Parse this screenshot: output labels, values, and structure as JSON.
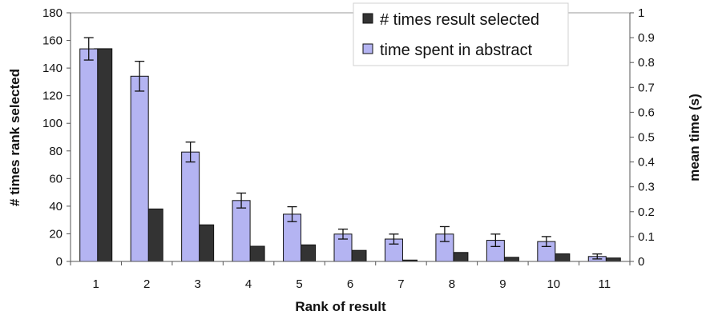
{
  "chart_data": {
    "type": "bar",
    "categories": [
      "1",
      "2",
      "3",
      "4",
      "5",
      "6",
      "7",
      "8",
      "9",
      "10",
      "11"
    ],
    "xlabel": "Rank of result",
    "ylabel": "# times rank selected",
    "y2label": "mean time (s)",
    "ylim": [
      0,
      180
    ],
    "y2lim": [
      0,
      1
    ],
    "yticks": [
      "0",
      "20",
      "40",
      "60",
      "80",
      "100",
      "120",
      "140",
      "160",
      "180"
    ],
    "y2ticks": [
      "0",
      "0.1",
      "0.2",
      "0.3",
      "0.4",
      "0.5",
      "0.6",
      "0.7",
      "0.8",
      "0.9",
      "1"
    ],
    "legend_position": "top-right",
    "grid": false,
    "series": [
      {
        "name": "# times result selected",
        "axis": "left",
        "color": "#333333",
        "values": [
          154,
          38,
          26.5,
          11,
          12,
          8,
          1,
          6.5,
          3,
          5.5,
          2.5
        ]
      },
      {
        "name": "time spent in abstract",
        "axis": "right",
        "color": "#b4b4f2",
        "values": [
          0.855,
          0.745,
          0.44,
          0.245,
          0.19,
          0.11,
          0.09,
          0.11,
          0.085,
          0.08,
          0.02
        ],
        "error": [
          0.045,
          0.06,
          0.04,
          0.03,
          0.03,
          0.02,
          0.02,
          0.03,
          0.025,
          0.02,
          0.01
        ]
      }
    ]
  }
}
